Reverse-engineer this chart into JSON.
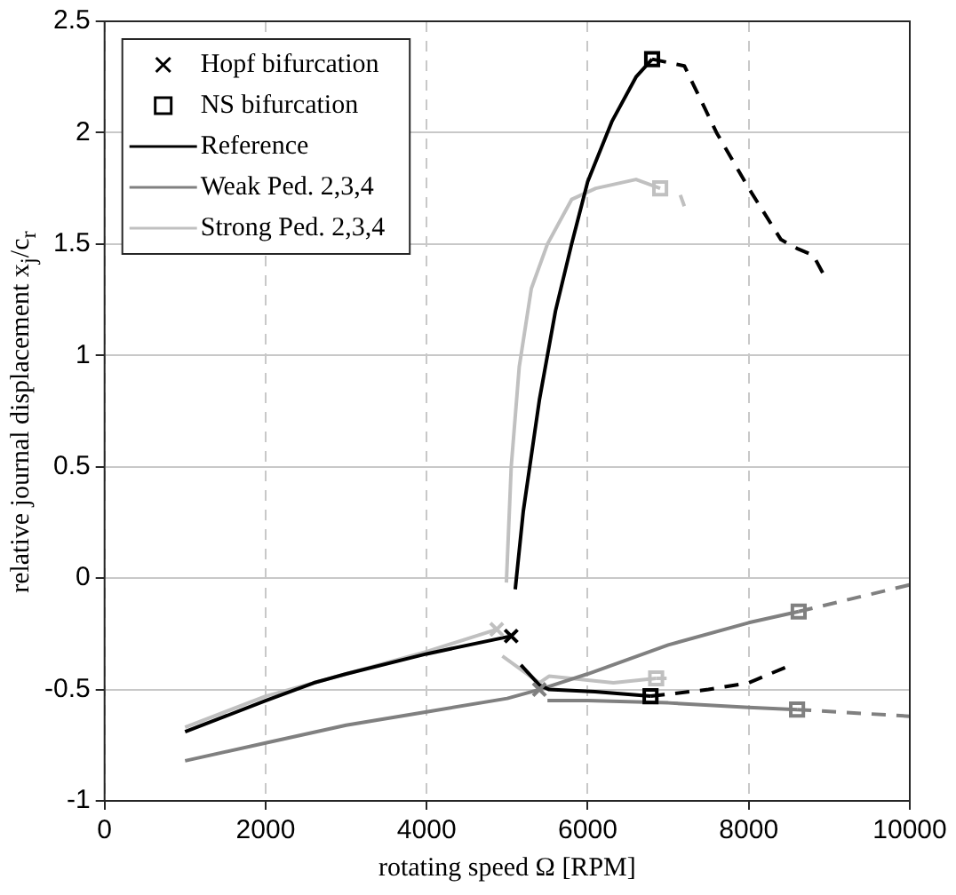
{
  "chart_data": {
    "type": "line",
    "xlabel": "rotating speed Ω [RPM]",
    "ylabel": "relative journal displacement x$_{j}$/c$_{r}$",
    "xlim": [
      0,
      10000
    ],
    "xticks": [
      0,
      2000,
      4000,
      6000,
      8000,
      10000
    ],
    "ylim": [
      -1,
      2.5
    ],
    "yticks": [
      -1,
      -0.5,
      0,
      0.5,
      1,
      1.5,
      2,
      2.5
    ],
    "grid": true,
    "legend": "top left",
    "marker": "none",
    "series": [
      {
        "type": "scatter",
        "name": "Hopf bifurcation",
        "marker": "cross",
        "color": "#000000",
        "colors": [
          "#000000",
          "#808080",
          "#c0c0c0"
        ],
        "x": [
          5050,
          5400,
          4870
        ],
        "values": [
          -0.26,
          -0.5,
          -0.23
        ]
      },
      {
        "type": "scatter",
        "name": "NS bifurcation",
        "marker": "square",
        "color": "#000000",
        "colors": [
          "#000000",
          "#000000",
          "#808080",
          "#808080",
          "#c0c0c0",
          "#c0c0c0"
        ],
        "x": [
          6800,
          6780,
          8620,
          8600,
          6900,
          6850
        ],
        "values": [
          2.33,
          -0.53,
          -0.15,
          -0.59,
          1.75,
          -0.45
        ]
      },
      {
        "name": "Reference",
        "color": "#000000",
        "line_style": "solid",
        "x": [
          1000,
          1500,
          2000,
          2600,
          3000,
          4000,
          5050
        ],
        "values": [
          -0.69,
          -0.62,
          -0.55,
          -0.47,
          -0.43,
          -0.34,
          -0.26
        ]
      },
      {
        "name": "Weak Ped. 2,3,4",
        "color": "#808080",
        "line_style": "solid",
        "x": [
          1000,
          2000,
          3000,
          4000,
          5000,
          5400
        ],
        "values": [
          -0.82,
          -0.74,
          -0.66,
          -0.6,
          -0.54,
          -0.5
        ]
      },
      {
        "name": "Strong Ped. 2,3,4",
        "color": "#c0c0c0",
        "line_style": "solid",
        "x": [
          1000,
          2000,
          3000,
          4000,
          4870
        ],
        "values": [
          -0.67,
          -0.53,
          -0.43,
          -0.33,
          -0.23
        ]
      },
      {
        "color": "#000000",
        "line_style": "solid",
        "x": [
          5100,
          5200,
          5400,
          5600,
          5800,
          6000,
          6300,
          6600,
          6800
        ],
        "values": [
          -0.05,
          0.3,
          0.8,
          1.2,
          1.5,
          1.78,
          2.05,
          2.25,
          2.33
        ]
      },
      {
        "color": "#000000",
        "line_style": "dashed",
        "x": [
          6800,
          7200,
          7600,
          8000,
          8400,
          8600,
          8800,
          8950
        ],
        "values": [
          2.33,
          2.3,
          2.0,
          1.75,
          1.52,
          1.48,
          1.45,
          1.35
        ]
      },
      {
        "color": "#000000",
        "line_style": "solid",
        "x": [
          5170,
          5400,
          5520,
          6090,
          6780
        ],
        "values": [
          -0.39,
          -0.48,
          -0.5,
          -0.51,
          -0.53
        ]
      },
      {
        "color": "#000000",
        "line_style": "dashed",
        "x": [
          6780,
          7500,
          8000,
          8460
        ],
        "values": [
          -0.53,
          -0.5,
          -0.47,
          -0.4
        ]
      },
      {
        "color": "#808080",
        "line_style": "solid",
        "x": [
          5400,
          6000,
          7000,
          8000,
          8620
        ],
        "values": [
          -0.5,
          -0.43,
          -0.3,
          -0.2,
          -0.15
        ]
      },
      {
        "color": "#808080",
        "line_style": "dashed",
        "x": [
          8620,
          10000
        ],
        "values": [
          -0.15,
          -0.03
        ]
      },
      {
        "color": "#808080",
        "line_style": "solid",
        "x": [
          5500,
          6000,
          7000,
          8000,
          8600
        ],
        "values": [
          -0.55,
          -0.55,
          -0.56,
          -0.58,
          -0.59
        ]
      },
      {
        "color": "#808080",
        "line_style": "dashed",
        "x": [
          8600,
          10000
        ],
        "values": [
          -0.59,
          -0.62
        ]
      },
      {
        "color": "#c0c0c0",
        "line_style": "solid",
        "x": [
          4990,
          5050,
          5150,
          5300,
          5500,
          5800,
          6100,
          6600,
          6900
        ],
        "values": [
          -0.02,
          0.5,
          0.95,
          1.3,
          1.5,
          1.7,
          1.75,
          1.79,
          1.75
        ]
      },
      {
        "color": "#c0c0c0",
        "line_style": "dashed",
        "x": [
          7150,
          7200
        ],
        "values": [
          1.72,
          1.67
        ]
      },
      {
        "color": "#c0c0c0",
        "line_style": "solid",
        "x": [
          4940,
          5400,
          5520,
          6320,
          6850
        ],
        "values": [
          -0.35,
          -0.47,
          -0.44,
          -0.47,
          -0.45
        ]
      },
      {
        "color": "#c0c0c0",
        "line_style": "dashed",
        "x": [
          6850,
          6980
        ],
        "values": [
          -0.45,
          -0.45
        ]
      }
    ]
  }
}
